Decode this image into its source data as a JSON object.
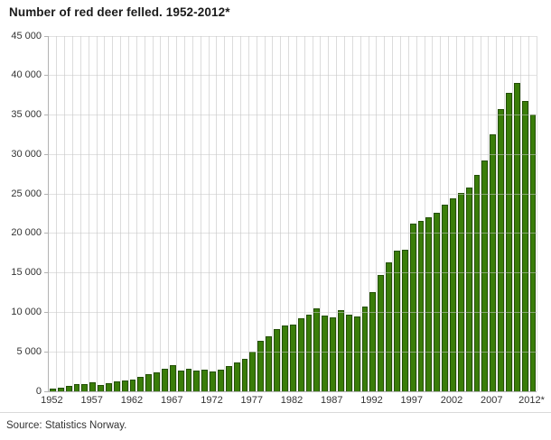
{
  "header": {
    "title": "Number of red deer felled. 1952-2012*"
  },
  "footer": {
    "source": "Source: Statistics Norway."
  },
  "chart_data": {
    "type": "bar",
    "title": "Number of red deer felled. 1952-2012*",
    "xlabel": "",
    "ylabel": "",
    "ylim": [
      0,
      45000
    ],
    "y_tick_step": 5000,
    "y_tick_labels": [
      "0",
      "5 000",
      "10 000",
      "15 000",
      "20 000",
      "25 000",
      "30 000",
      "35 000",
      "40 000",
      "45 000"
    ],
    "x_tick_labels": [
      "1952",
      "1957",
      "1962",
      "1967",
      "1972",
      "1977",
      "1982",
      "1987",
      "1992",
      "1997",
      "2002",
      "2007",
      "2012*"
    ],
    "x_tick_every": 5,
    "grid": {
      "vertical_per_year": true,
      "horizontal_per_tick": true
    },
    "legend": "none",
    "categories": [
      1952,
      1953,
      1954,
      1955,
      1956,
      1957,
      1958,
      1959,
      1960,
      1961,
      1962,
      1963,
      1964,
      1965,
      1966,
      1967,
      1968,
      1969,
      1970,
      1971,
      1972,
      1973,
      1974,
      1975,
      1976,
      1977,
      1978,
      1979,
      1980,
      1981,
      1982,
      1983,
      1984,
      1985,
      1986,
      1987,
      1988,
      1989,
      1990,
      1991,
      1992,
      1993,
      1994,
      1995,
      1996,
      1997,
      1998,
      1999,
      2000,
      2001,
      2002,
      2003,
      2004,
      2005,
      2006,
      2007,
      2008,
      2009,
      2010,
      2011,
      2012
    ],
    "values": [
      350,
      450,
      680,
      870,
      910,
      1100,
      750,
      1000,
      1220,
      1380,
      1520,
      1800,
      2150,
      2350,
      2900,
      3300,
      2650,
      2850,
      2600,
      2700,
      2500,
      2750,
      3200,
      3600,
      4150,
      5050,
      6400,
      7000,
      7900,
      8300,
      8500,
      9300,
      9700,
      10500,
      9600,
      9400,
      10300,
      9700,
      9500,
      10700,
      12600,
      14700,
      16300,
      17800,
      17900,
      21200,
      21550,
      22000,
      22600,
      23600,
      24500,
      25100,
      25800,
      27400,
      29200,
      32500,
      35700,
      37800,
      39100,
      36800,
      35100
    ],
    "colors": {
      "bar_fill": "#3a7d09",
      "bar_border": "#234f04",
      "vertical_grid": "#dcdcdc",
      "horizontal_grid_overlay": "rgba(201,201,201,0.55)",
      "axis_line": "#b3b3b3",
      "text": "#333333",
      "title_text": "#1a1a1a",
      "background": "#ffffff"
    }
  }
}
